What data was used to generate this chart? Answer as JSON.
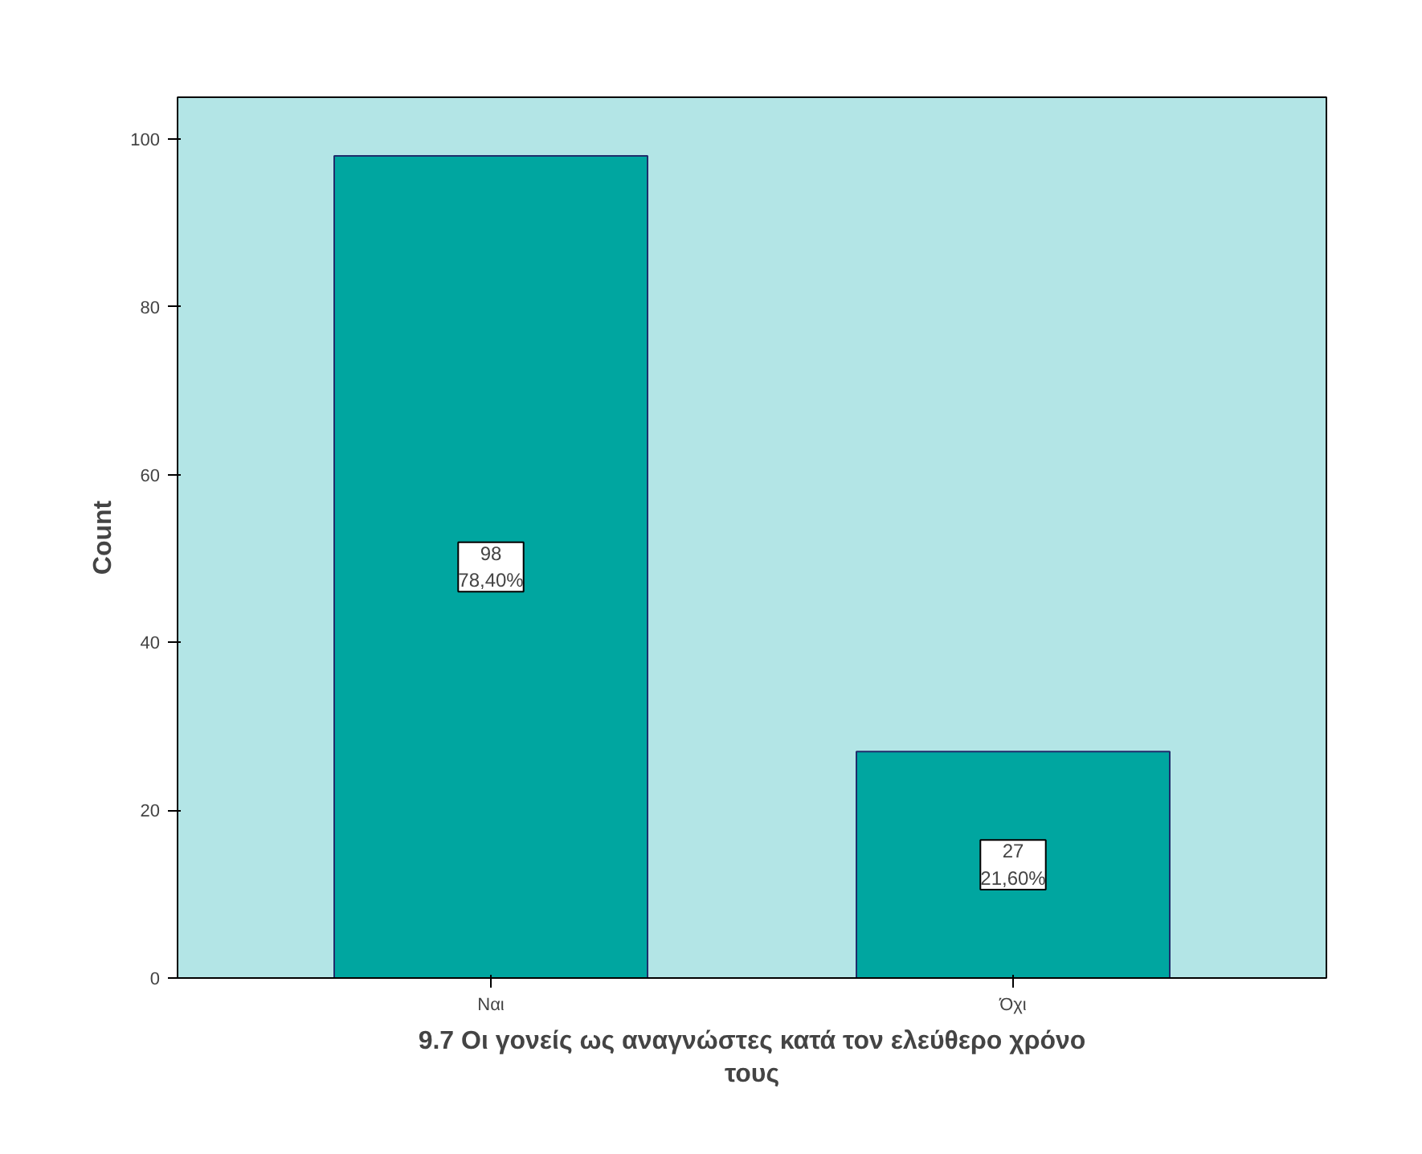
{
  "chart_data": {
    "type": "bar",
    "categories": [
      "Ναι",
      "Όχι"
    ],
    "values": [
      98,
      27
    ],
    "color": "#00a6a0",
    "value_labels": [
      "98\n78,40%",
      "27\n21,60%"
    ],
    "xlabel": "9.7 Οι γονείς ως αναγνώστες κατά τον ελεύθερο χρόνο\nτους",
    "ylabel": "Count",
    "ylim": [
      0,
      105
    ],
    "yticks": [
      0,
      20,
      40,
      60,
      80,
      100
    ],
    "grid": false
  }
}
